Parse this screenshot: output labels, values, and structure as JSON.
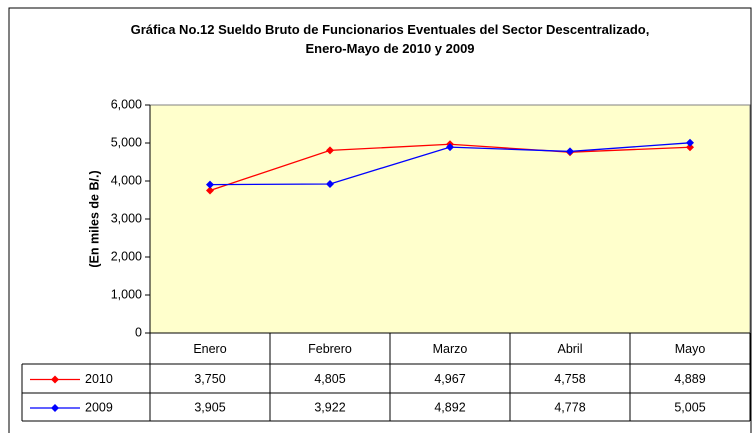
{
  "chart_data": {
    "type": "line",
    "title": "Gráfica No.12 Sueldo Bruto de Funcionarios Eventuales del Sector Descentralizado, Enero-Mayo de 2010 y 2009",
    "y_label": "(En miles de B/.)",
    "categories": [
      "Enero",
      "Febrero",
      "Marzo",
      "Abril",
      "Mayo"
    ],
    "series": [
      {
        "name": "2010",
        "color": "#ff0000",
        "values": [
          3750,
          4805,
          4967,
          4758,
          4889
        ],
        "value_labels": [
          "3,750",
          "4,805",
          "4,967",
          "4,758",
          "4,889"
        ]
      },
      {
        "name": "2009",
        "color": "#0000ff",
        "values": [
          3905,
          3922,
          4892,
          4778,
          5005
        ],
        "value_labels": [
          "3,905",
          "3,922",
          "4,892",
          "4,778",
          "5,005"
        ]
      }
    ],
    "ylim": [
      0,
      6000
    ],
    "yticks": [
      {
        "value": 0,
        "label": "0"
      },
      {
        "value": 1000,
        "label": "1,000"
      },
      {
        "value": 2000,
        "label": "2,000"
      },
      {
        "value": 3000,
        "label": "3,000"
      },
      {
        "value": 4000,
        "label": "4,000"
      },
      {
        "value": 5000,
        "label": "5,000"
      },
      {
        "value": 6000,
        "label": "6,000"
      }
    ],
    "plot_background": "#ffffcc",
    "grid": false
  }
}
